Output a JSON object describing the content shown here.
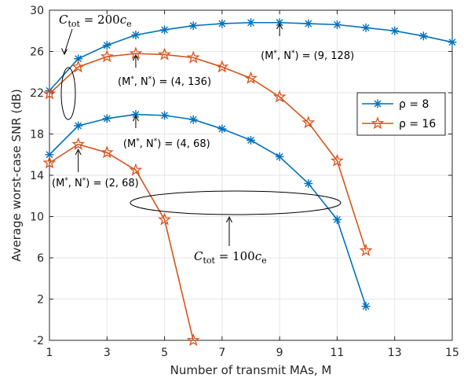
{
  "chart_data": {
    "type": "line",
    "xlabel": "Number of transmit MAs, M",
    "ylabel": "Average worst-case SNR (dB)",
    "xlim": [
      1,
      15
    ],
    "ylim": [
      -2,
      30
    ],
    "xticks": [
      1,
      3,
      5,
      7,
      9,
      11,
      13,
      15
    ],
    "yticks": [
      -2,
      2,
      6,
      10,
      14,
      18,
      22,
      26,
      30
    ],
    "grid": true,
    "legend_placement": "right",
    "colors": {
      "blue": "#0072BD",
      "orange": "#D95319"
    },
    "series": [
      {
        "name": "ρ = 8",
        "color": "#0072BD",
        "marker": "asterisk",
        "group": "C_tot = 200c_e",
        "x": [
          1,
          2,
          3,
          4,
          5,
          6,
          7,
          8,
          9,
          10,
          11,
          12,
          13,
          14,
          15
        ],
        "y": [
          22.2,
          25.3,
          26.6,
          27.6,
          28.1,
          28.5,
          28.7,
          28.8,
          28.8,
          28.7,
          28.6,
          28.3,
          28.0,
          27.5,
          26.9
        ]
      },
      {
        "name": "ρ = 16",
        "color": "#D95319",
        "marker": "pentagram",
        "group": "C_tot = 200c_e",
        "x": [
          1,
          2,
          3,
          4,
          5,
          6,
          7,
          8,
          9,
          10,
          11,
          12
        ],
        "y": [
          21.9,
          24.5,
          25.5,
          25.8,
          25.7,
          25.4,
          24.5,
          23.4,
          21.6,
          19.1,
          15.4,
          6.7
        ]
      },
      {
        "name": "ρ = 8",
        "color": "#0072BD",
        "marker": "asterisk",
        "group": "C_tot = 100c_e",
        "x": [
          1,
          2,
          3,
          4,
          5,
          6,
          7,
          8,
          9,
          10,
          11,
          12
        ],
        "y": [
          16.0,
          18.8,
          19.5,
          19.9,
          19.8,
          19.4,
          18.5,
          17.4,
          15.8,
          13.2,
          9.7,
          1.3
        ]
      },
      {
        "name": "ρ = 16",
        "color": "#D95319",
        "marker": "pentagram",
        "group": "C_tot = 100c_e",
        "x": [
          1,
          2,
          3,
          4,
          5,
          6
        ],
        "y": [
          15.2,
          17.0,
          16.2,
          14.5,
          9.7,
          -2.0
        ]
      }
    ],
    "legend": [
      "ρ = 8",
      "ρ = 16"
    ],
    "annotations": [
      {
        "text": "(M*, N*) = (9, 128)",
        "x": 9,
        "y": 28.8
      },
      {
        "text": "(M*, N*) = (4, 136)",
        "x": 4,
        "y": 25.8
      },
      {
        "text": "(M*, N*) = (4, 68)",
        "x": 4,
        "y": 19.9
      },
      {
        "text": "(M*, N*) = (2, 68)",
        "x": 2,
        "y": 17.0
      },
      {
        "text": "C_tot = 200c_e"
      },
      {
        "text": "C_tot = 100c_e"
      }
    ]
  }
}
